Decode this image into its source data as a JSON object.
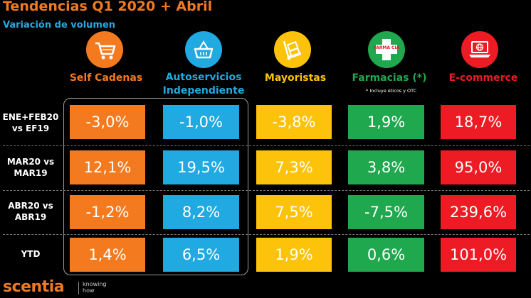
{
  "title": "Tendencias Q1 2020 + Abril",
  "subtitle": "Variación de volumen",
  "footnote": "* Incluye éticos y OTC",
  "pharmacy_icon_text": "FARMA CIA",
  "brand": {
    "logo": "scentia",
    "tagline_1": "knowing",
    "tagline_2": "how"
  },
  "colors": {
    "self": "#f47a1f",
    "auto": "#21a9e1",
    "mayor": "#fdc30a",
    "farma": "#1fa84d",
    "ecom": "#ed1c24",
    "title": "#f07a20"
  },
  "chart_data": {
    "type": "table",
    "title": "Tendencias Q1 2020 + Abril",
    "subtitle": "Variación de volumen",
    "columns": [
      {
        "label": "Self Cadenas",
        "icon": "shopping-cart-icon"
      },
      {
        "label_1": "Autoservicios",
        "label_2": "Independiente",
        "icon": "shopping-basket-icon"
      },
      {
        "label": "Mayoristas",
        "icon": "hand-truck-icon"
      },
      {
        "label": "Farmacias (*)",
        "icon": "pharmacy-cross-icon"
      },
      {
        "label": "E-commerce",
        "icon": "laptop-globe-icon"
      }
    ],
    "rows": [
      {
        "label_1": "ENE+FEB20",
        "label_2": "vs EF19",
        "values": [
          "-3,0%",
          "-1,0%",
          "-3,8%",
          "1,9%",
          "18,7%"
        ]
      },
      {
        "label_1": "MAR20 vs",
        "label_2": "MAR19",
        "values": [
          "12,1%",
          "19,5%",
          "7,3%",
          "3,8%",
          "95,0%"
        ]
      },
      {
        "label_1": "ABR20 vs",
        "label_2": "ABR19",
        "values": [
          "-1,2%",
          "8,2%",
          "7,5%",
          "-7,5%",
          "239,6%"
        ]
      },
      {
        "label_1": "YTD",
        "label_2": "",
        "values": [
          "1,4%",
          "6,5%",
          "1,9%",
          "0,6%",
          "101,0%"
        ]
      }
    ]
  }
}
